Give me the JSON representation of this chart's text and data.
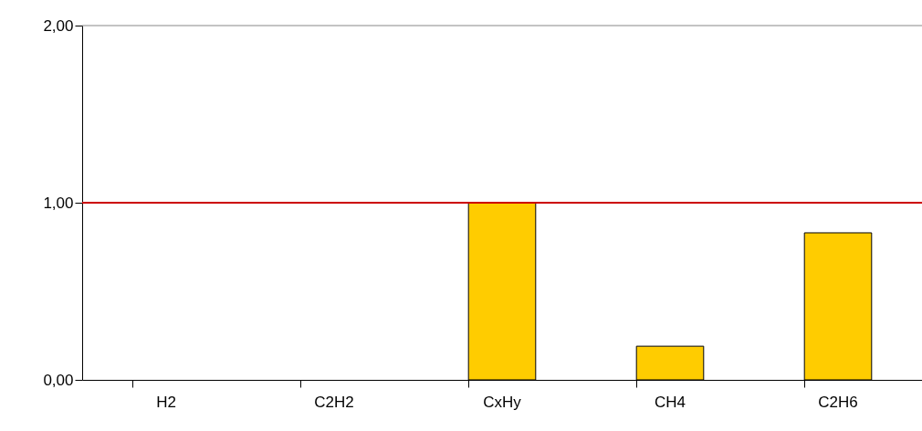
{
  "chart_data": {
    "type": "bar",
    "categories": [
      "H2",
      "C2H2",
      "CxHy",
      "CH4",
      "C2H6"
    ],
    "values": [
      0,
      0,
      1.0,
      0.19,
      0.83
    ],
    "color": "#ffcc00",
    "ylim": [
      0,
      2
    ],
    "yticks": [
      {
        "value": 0,
        "label": "0,00"
      },
      {
        "value": 1,
        "label": "1,00"
      },
      {
        "value": 2,
        "label": "2,00"
      }
    ],
    "ref_lines": [
      {
        "axis": "y",
        "value": 1,
        "color": "#cc0000"
      }
    ],
    "grid": false
  }
}
